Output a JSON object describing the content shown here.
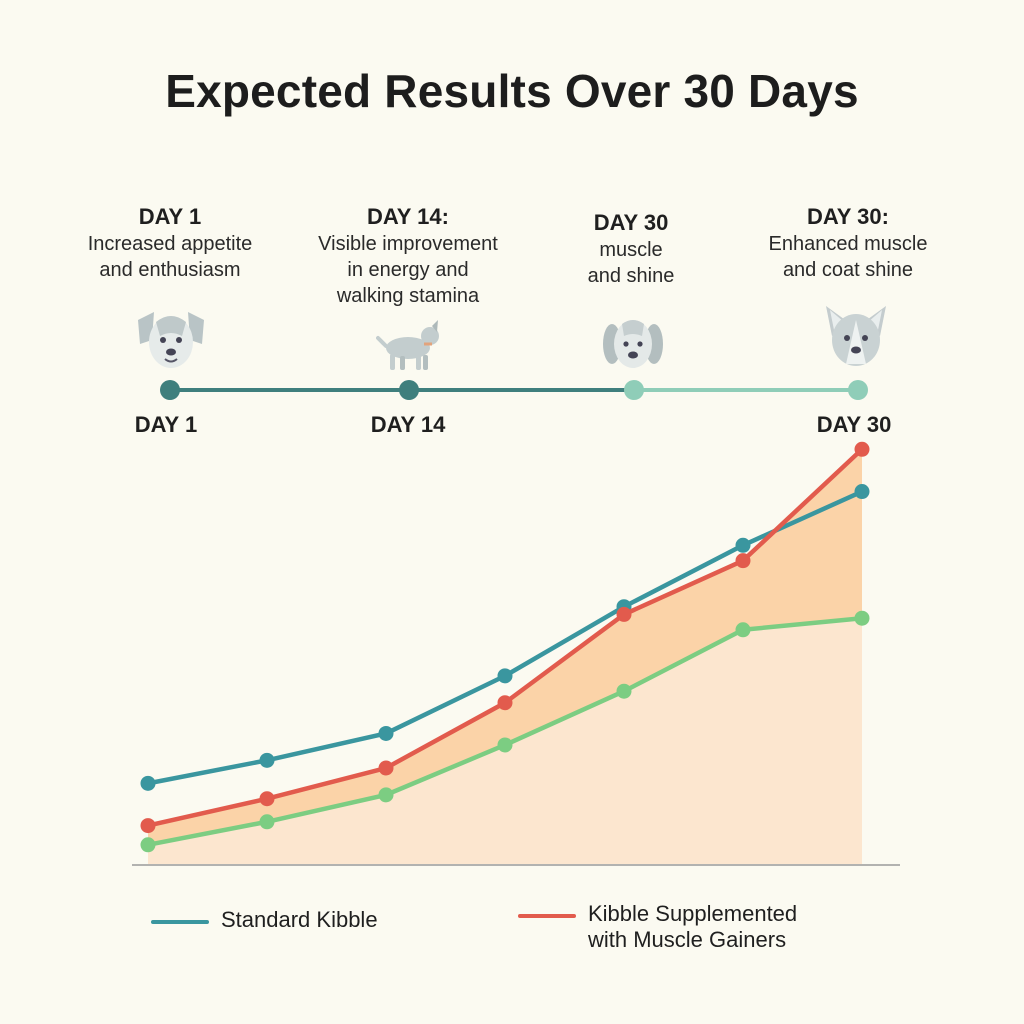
{
  "title": "Expected Results Over 30 Days",
  "milestones": [
    {
      "heading": "DAY 1",
      "description": "Increased appetite\nand enthusiasm",
      "icon": "dog-face-icon"
    },
    {
      "heading": "DAY 14:",
      "description": "Visible improvement\nin energy and\nwalking stamina",
      "icon": "walking-dog-icon"
    },
    {
      "heading": "DAY 30",
      "description": "muscle\nand shine",
      "icon": "floppy-ear-dog-icon"
    },
    {
      "heading": "DAY 30:",
      "description": "Enhanced muscle\nand coat shine",
      "icon": "pointy-ear-dog-icon"
    }
  ],
  "timeline": {
    "labels": [
      "DAY 1",
      "DAY 14",
      "DAY 30"
    ],
    "colors": {
      "dark": "#3f7f7d",
      "light": "#8fcdb8"
    }
  },
  "chart_data": {
    "type": "line",
    "title": "",
    "xlabel": "",
    "ylabel": "",
    "x": [
      1,
      2,
      3,
      4,
      5,
      6,
      7
    ],
    "xlim": [
      1,
      7
    ],
    "ylim": [
      0,
      100
    ],
    "grid": false,
    "legend_position": "bottom",
    "series": [
      {
        "name": "Standard Kibble",
        "color": "#3a969f",
        "values": [
          21,
          27,
          34,
          49,
          67,
          83,
          97
        ]
      },
      {
        "name": "Kibble Supplemented\nwith Muscle Gainers",
        "color": "#e25b4d",
        "values": [
          10,
          17,
          25,
          42,
          65,
          79,
          108
        ],
        "fill": "#fbd3a8"
      },
      {
        "name": "",
        "color": "#7ccd82",
        "values": [
          5,
          11,
          18,
          31,
          45,
          61,
          64
        ],
        "fill": "#fce6cf"
      }
    ]
  },
  "legend": {
    "items": [
      {
        "label": "Standard Kibble",
        "color": "#3a969f"
      },
      {
        "label": "Kibble Supplemented\nwith Muscle Gainers",
        "color": "#e25b4d"
      }
    ]
  }
}
